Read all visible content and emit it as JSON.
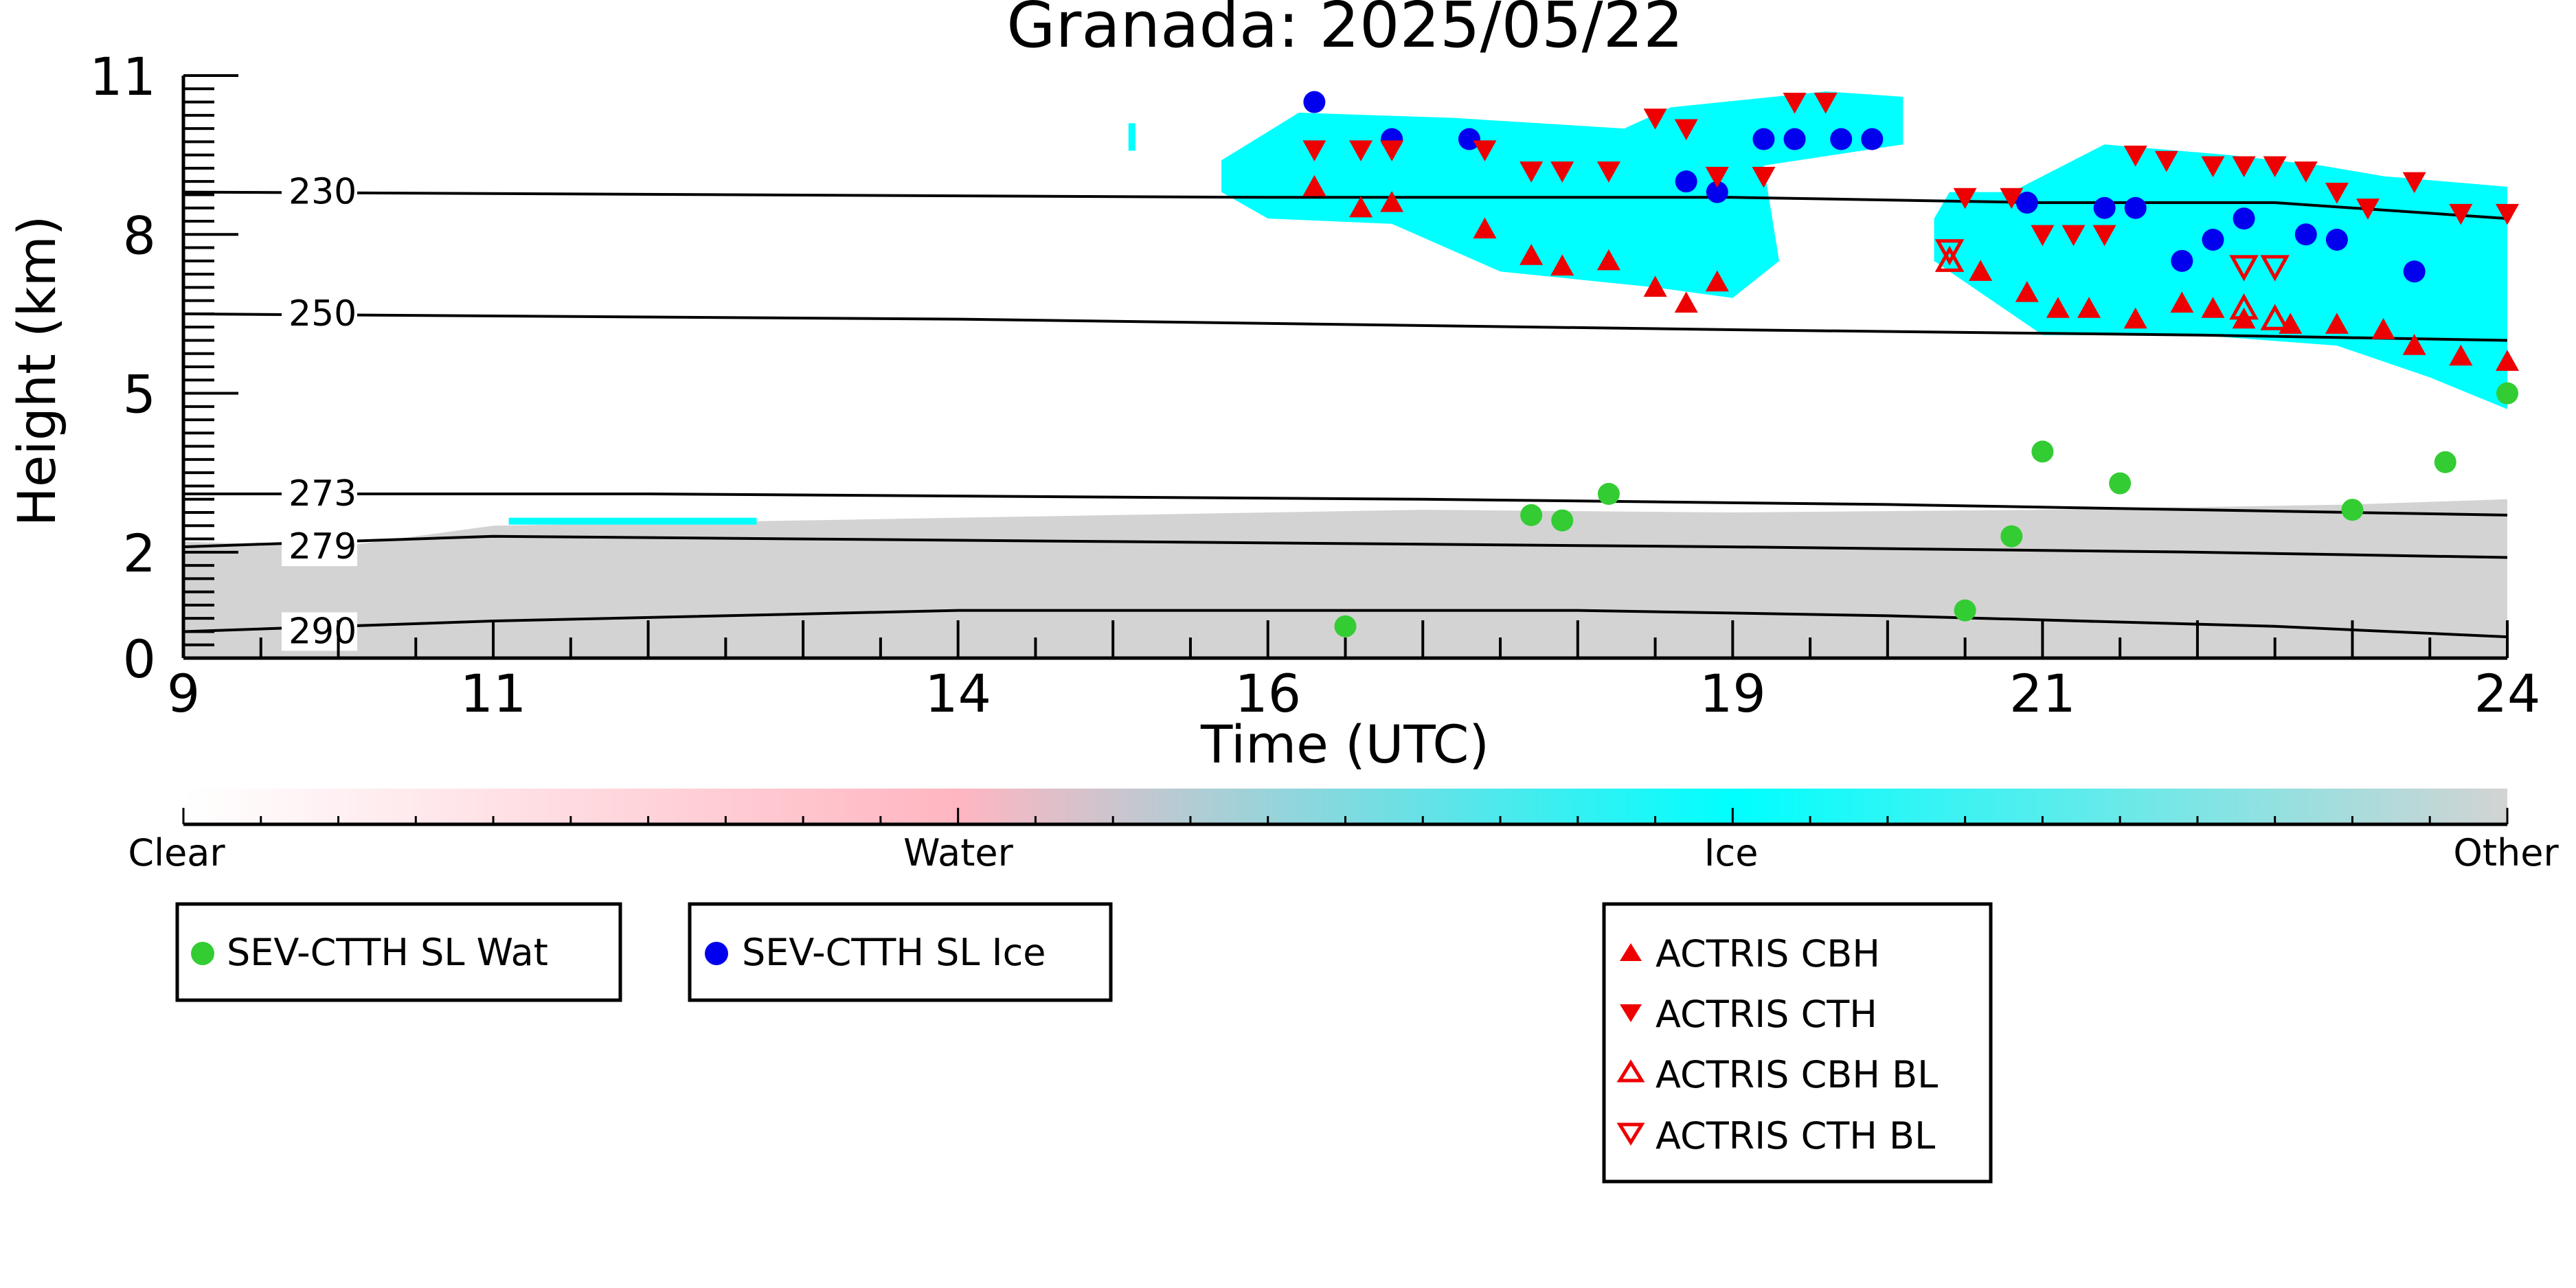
{
  "chart_data": {
    "type": "scatter",
    "title": "Granada: 2025/05/22",
    "xlabel": "Time (UTC)",
    "ylabel": "Height (km)",
    "xlim": [
      9,
      24
    ],
    "ylim": [
      0,
      11
    ],
    "x_ticks": [
      "9",
      "11",
      "14",
      "16",
      "19",
      "21",
      "24"
    ],
    "y_ticks": [
      "11",
      "8",
      "5",
      "2",
      "0"
    ],
    "isotherms": [
      {
        "label": "230",
        "points": [
          [
            9,
            8.8
          ],
          [
            16,
            8.7
          ],
          [
            19,
            8.7
          ],
          [
            21,
            8.6
          ],
          [
            22.5,
            8.6
          ],
          [
            24,
            8.3
          ]
        ]
      },
      {
        "label": "250",
        "points": [
          [
            9,
            6.5
          ],
          [
            14,
            6.4
          ],
          [
            19,
            6.2
          ],
          [
            22,
            6.1
          ],
          [
            24,
            6.0
          ]
        ]
      },
      {
        "label": "273",
        "points": [
          [
            9,
            3.1
          ],
          [
            12,
            3.1
          ],
          [
            17,
            3.0
          ],
          [
            20,
            2.9
          ],
          [
            22,
            2.8
          ],
          [
            24,
            2.7
          ]
        ]
      },
      {
        "label": "279",
        "points": [
          [
            9,
            2.1
          ],
          [
            11,
            2.3
          ],
          [
            15,
            2.2
          ],
          [
            19,
            2.1
          ],
          [
            22,
            2.0
          ],
          [
            24,
            1.9
          ]
        ]
      },
      {
        "label": "290",
        "points": [
          [
            9,
            0.5
          ],
          [
            11,
            0.7
          ],
          [
            14,
            0.9
          ],
          [
            18,
            0.9
          ],
          [
            20,
            0.8
          ],
          [
            22.5,
            0.6
          ],
          [
            24,
            0.4
          ]
        ]
      }
    ],
    "colorbar": {
      "labels": [
        "Clear",
        "Water",
        "Ice",
        "Other"
      ],
      "colors": [
        "#ffffff",
        "#ffb6c1",
        "#00ffff",
        "#d3d3d3"
      ]
    },
    "background_colors": {
      "other": "#d3d3d3",
      "ice": "#00ffff",
      "water": "#ffb6c1"
    },
    "series": [
      {
        "name": "SEV-CTTH SL Wat",
        "marker": "circle",
        "color": "#33cc33",
        "points": [
          [
            16.5,
            0.6
          ],
          [
            17.7,
            2.7
          ],
          [
            17.9,
            2.6
          ],
          [
            18.2,
            3.1
          ],
          [
            20.5,
            0.9
          ],
          [
            20.8,
            2.3
          ],
          [
            21.0,
            3.9
          ],
          [
            21.5,
            3.3
          ],
          [
            23.0,
            2.8
          ],
          [
            23.6,
            3.7
          ],
          [
            24.0,
            5.0
          ]
        ]
      },
      {
        "name": "SEV-CTTH SL Ice",
        "marker": "circle",
        "color": "#0000ee",
        "points": [
          [
            16.3,
            10.5
          ],
          [
            16.8,
            9.8
          ],
          [
            17.3,
            9.8
          ],
          [
            18.7,
            9.0
          ],
          [
            18.9,
            8.8
          ],
          [
            19.2,
            9.8
          ],
          [
            19.4,
            9.8
          ],
          [
            19.7,
            9.8
          ],
          [
            19.9,
            9.8
          ],
          [
            20.9,
            8.6
          ],
          [
            21.4,
            8.5
          ],
          [
            21.6,
            8.5
          ],
          [
            21.9,
            7.5
          ],
          [
            22.1,
            7.9
          ],
          [
            22.3,
            8.3
          ],
          [
            22.7,
            8.0
          ],
          [
            22.9,
            7.9
          ],
          [
            23.4,
            7.3
          ]
        ]
      },
      {
        "name": "ACTRIS CBH",
        "marker": "triangle-up",
        "color": "#ee0000",
        "points": [
          [
            16.3,
            8.9
          ],
          [
            16.6,
            8.5
          ],
          [
            16.8,
            8.6
          ],
          [
            17.4,
            8.1
          ],
          [
            17.7,
            7.6
          ],
          [
            17.9,
            7.4
          ],
          [
            18.2,
            7.5
          ],
          [
            18.5,
            7.0
          ],
          [
            18.7,
            6.7
          ],
          [
            18.9,
            7.1
          ],
          [
            20.6,
            7.3
          ],
          [
            20.9,
            6.9
          ],
          [
            21.1,
            6.6
          ],
          [
            21.3,
            6.6
          ],
          [
            21.6,
            6.4
          ],
          [
            21.9,
            6.7
          ],
          [
            22.1,
            6.6
          ],
          [
            22.3,
            6.4
          ],
          [
            22.6,
            6.3
          ],
          [
            22.9,
            6.3
          ],
          [
            23.2,
            6.2
          ],
          [
            23.4,
            5.9
          ],
          [
            23.7,
            5.7
          ],
          [
            24.0,
            5.6
          ]
        ]
      },
      {
        "name": "ACTRIS CTH",
        "marker": "triangle-down",
        "color": "#ee0000",
        "points": [
          [
            16.3,
            9.6
          ],
          [
            16.6,
            9.6
          ],
          [
            16.8,
            9.6
          ],
          [
            17.4,
            9.6
          ],
          [
            17.7,
            9.2
          ],
          [
            17.9,
            9.2
          ],
          [
            18.2,
            9.2
          ],
          [
            18.5,
            10.2
          ],
          [
            18.7,
            10.0
          ],
          [
            18.9,
            9.1
          ],
          [
            19.2,
            9.1
          ],
          [
            19.4,
            10.5
          ],
          [
            19.6,
            10.5
          ],
          [
            20.5,
            8.7
          ],
          [
            20.8,
            8.7
          ],
          [
            21.0,
            8.0
          ],
          [
            21.2,
            8.0
          ],
          [
            21.4,
            8.0
          ],
          [
            21.6,
            9.5
          ],
          [
            21.8,
            9.4
          ],
          [
            22.1,
            9.3
          ],
          [
            22.3,
            9.3
          ],
          [
            22.5,
            9.3
          ],
          [
            22.7,
            9.2
          ],
          [
            22.9,
            8.8
          ],
          [
            23.1,
            8.5
          ],
          [
            23.4,
            9.0
          ],
          [
            23.7,
            8.4
          ],
          [
            24.0,
            8.4
          ]
        ]
      },
      {
        "name": "ACTRIS CBH BL",
        "marker": "triangle-up-open",
        "color": "#ee0000",
        "points": [
          [
            20.4,
            7.5
          ],
          [
            22.3,
            6.6
          ],
          [
            22.5,
            6.4
          ]
        ]
      },
      {
        "name": "ACTRIS CTH BL",
        "marker": "triangle-down-open",
        "color": "#ee0000",
        "points": [
          [
            20.4,
            7.7
          ],
          [
            22.3,
            7.4
          ],
          [
            22.5,
            7.4
          ]
        ]
      }
    ],
    "legend_placement": "below"
  }
}
